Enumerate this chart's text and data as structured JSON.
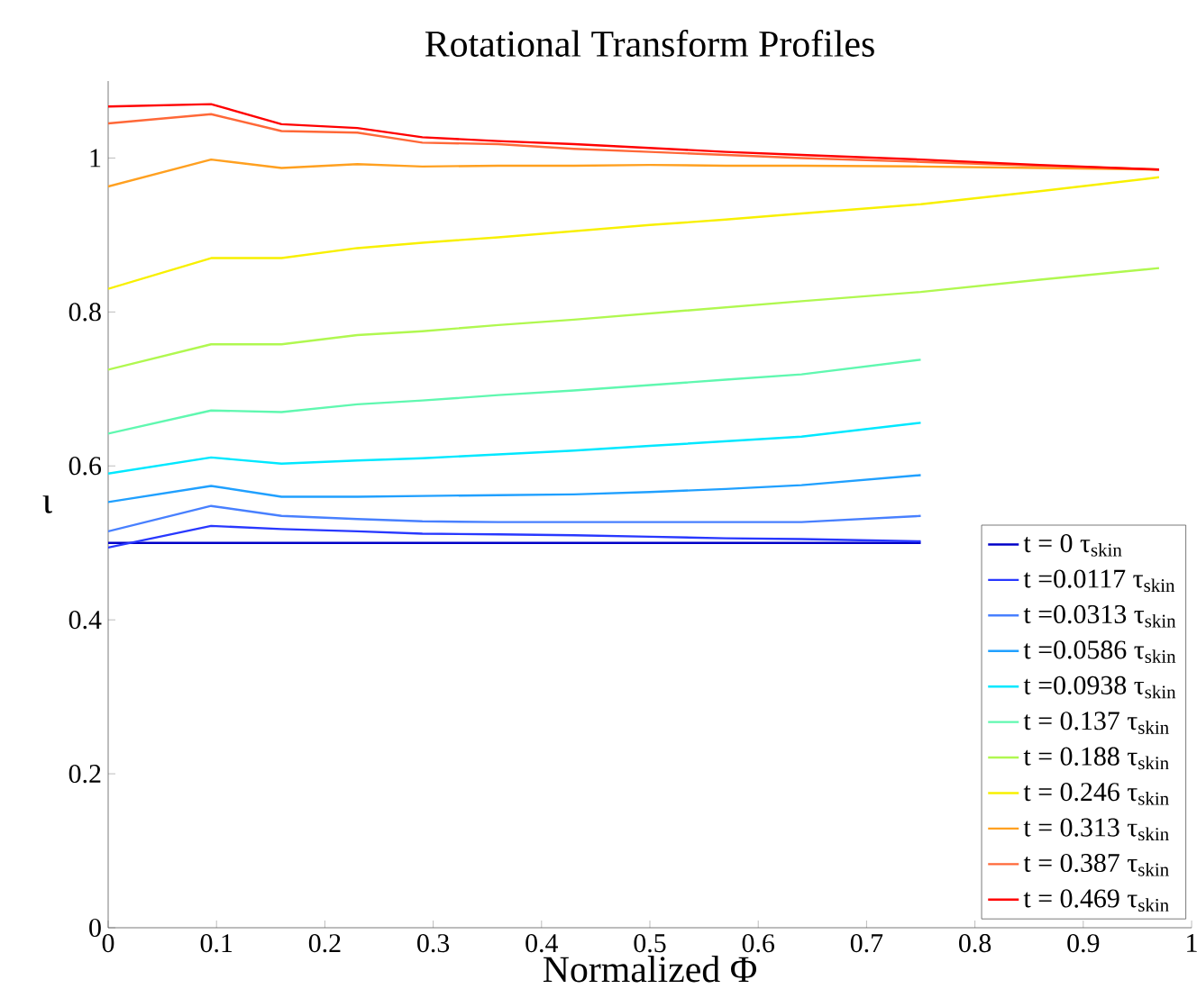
{
  "chart_data": {
    "type": "line",
    "title": "Rotational Transform Profiles",
    "xlabel": "Normalized Φ",
    "ylabel": "ι",
    "x": [
      0,
      0.095,
      0.16,
      0.23,
      0.29,
      0.36,
      0.43,
      0.5,
      0.57,
      0.64,
      0.75,
      0.86,
      0.97
    ],
    "xlim": [
      0,
      1
    ],
    "ylim": [
      0,
      1.1
    ],
    "xticks": [
      0,
      0.1,
      0.2,
      0.3,
      0.4,
      0.5,
      0.6,
      0.7,
      0.8,
      0.9,
      1
    ],
    "yticks": [
      0,
      0.2,
      0.4,
      0.6,
      0.8,
      1
    ],
    "legend": "bottom right",
    "marker": "none",
    "line_style": "solid",
    "series": [
      {
        "name": "t =      0 τ$_{skin}$",
        "color": "#0000c8",
        "values": [
          0.5,
          0.5,
          0.5,
          0.5,
          0.5,
          0.5,
          0.5,
          0.5,
          0.5,
          0.5,
          0.5,
          null,
          null
        ]
      },
      {
        "name": "t =0.0117 τ$_{skin}$",
        "color": "#2838ff",
        "values": [
          0.494,
          0.522,
          0.518,
          0.515,
          0.512,
          0.511,
          0.51,
          0.508,
          0.506,
          0.505,
          0.502,
          null,
          null
        ]
      },
      {
        "name": "t =0.0313 τ$_{skin}$",
        "color": "#4880ff",
        "values": [
          0.515,
          0.548,
          0.535,
          0.531,
          0.528,
          0.527,
          0.527,
          0.527,
          0.527,
          0.527,
          0.535,
          null,
          null
        ]
      },
      {
        "name": "t =0.0586 τ$_{skin}$",
        "color": "#20a0ff",
        "values": [
          0.553,
          0.574,
          0.56,
          0.56,
          0.561,
          0.562,
          0.563,
          0.566,
          0.57,
          0.575,
          0.588,
          null,
          null
        ]
      },
      {
        "name": "t =0.0938 τ$_{skin}$",
        "color": "#00e8ff",
        "values": [
          0.59,
          0.611,
          0.603,
          0.607,
          0.61,
          0.615,
          0.62,
          0.626,
          0.632,
          0.638,
          0.656,
          null,
          null
        ]
      },
      {
        "name": "t = 0.137 τ$_{skin}$",
        "color": "#60f8b0",
        "values": [
          0.642,
          0.672,
          0.67,
          0.68,
          0.685,
          0.692,
          0.698,
          0.705,
          0.712,
          0.719,
          0.738,
          null,
          null
        ]
      },
      {
        "name": "t = 0.188 τ$_{skin}$",
        "color": "#b0f850",
        "values": [
          0.725,
          0.758,
          0.758,
          0.77,
          0.775,
          0.783,
          0.79,
          0.798,
          0.806,
          0.814,
          0.826,
          0.842,
          0.857
        ]
      },
      {
        "name": "t = 0.246 τ$_{skin}$",
        "color": "#f8f000",
        "values": [
          0.83,
          0.87,
          0.87,
          0.883,
          0.89,
          0.897,
          0.905,
          0.913,
          0.92,
          0.928,
          0.94,
          0.957,
          0.975
        ]
      },
      {
        "name": "t = 0.313 τ$_{skin}$",
        "color": "#ffa020",
        "values": [
          0.963,
          0.998,
          0.987,
          0.992,
          0.989,
          0.99,
          0.99,
          0.991,
          0.99,
          0.99,
          0.989,
          0.987,
          0.985
        ]
      },
      {
        "name": "t = 0.387 τ$_{skin}$",
        "color": "#ff6838",
        "values": [
          1.045,
          1.057,
          1.035,
          1.033,
          1.02,
          1.018,
          1.012,
          1.008,
          1.004,
          1.0,
          0.995,
          0.99,
          0.985
        ]
      },
      {
        "name": "t = 0.469 τ$_{skin}$",
        "color": "#ff0000",
        "values": [
          1.067,
          1.07,
          1.044,
          1.039,
          1.027,
          1.022,
          1.018,
          1.013,
          1.008,
          1.004,
          0.998,
          0.991,
          0.985
        ]
      }
    ]
  }
}
